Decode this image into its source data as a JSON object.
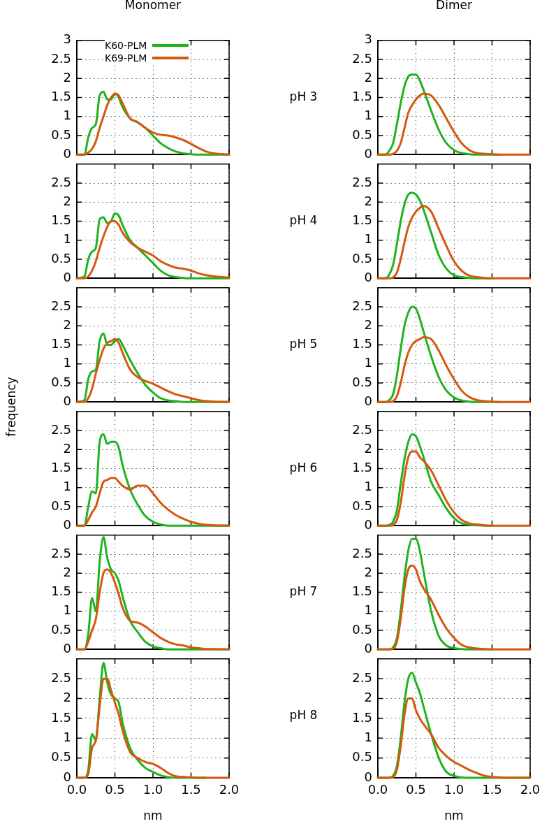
{
  "chart_data": [
    {
      "type": "line",
      "title": "Monomer",
      "annotations": [
        "pH 3"
      ],
      "legend": "top",
      "marker": "none",
      "line_style": "solid",
      "grid": true,
      "tick_labels": "y",
      "x": [
        0,
        0.1,
        0.15,
        0.2,
        0.25,
        0.3,
        0.35,
        0.4,
        0.45,
        0.5,
        0.55,
        0.6,
        0.7,
        0.8,
        0.9,
        1.0,
        1.1,
        1.2,
        1.3,
        1.4,
        1.5,
        1.6,
        1.7,
        1.8,
        2.0
      ],
      "xlim": [
        0,
        2
      ],
      "xticks": [
        {
          "value": 0,
          "label": null
        },
        {
          "value": 0.5,
          "label": null
        },
        {
          "value": 1,
          "label": null
        },
        {
          "value": 1.5,
          "label": null
        },
        {
          "value": 2,
          "label": null
        }
      ],
      "ylim": [
        0,
        3
      ],
      "yticks": [
        0,
        0.5,
        1,
        1.5,
        2,
        2.5,
        3
      ],
      "series": [
        {
          "name": "K60-PLM",
          "color": "#1fb31f",
          "values": [
            0,
            0,
            0.45,
            0.7,
            0.8,
            1.55,
            1.65,
            1.45,
            1.45,
            1.6,
            1.5,
            1.25,
            0.95,
            0.85,
            0.7,
            0.5,
            0.3,
            0.17,
            0.08,
            0.03,
            0.01,
            0,
            0,
            0,
            0
          ]
        },
        {
          "name": "K69-PLM",
          "color": "#d4580f",
          "values": [
            0,
            0,
            0.05,
            0.15,
            0.35,
            0.7,
            1.0,
            1.3,
            1.5,
            1.6,
            1.55,
            1.35,
            0.95,
            0.85,
            0.7,
            0.58,
            0.52,
            0.5,
            0.45,
            0.38,
            0.28,
            0.17,
            0.08,
            0.03,
            0
          ]
        }
      ]
    },
    {
      "type": "line",
      "title": "Dimer",
      "marker": "none",
      "line_style": "solid",
      "grid": true,
      "tick_labels": "y",
      "x": [
        0,
        0.1,
        0.15,
        0.2,
        0.25,
        0.3,
        0.35,
        0.4,
        0.45,
        0.5,
        0.55,
        0.6,
        0.7,
        0.8,
        0.9,
        1.0,
        1.1,
        1.2,
        1.3,
        1.4,
        1.5,
        1.6,
        1.7,
        1.8,
        2.0
      ],
      "xlim": [
        0,
        2
      ],
      "xticks": [
        {
          "value": 0,
          "label": null
        },
        {
          "value": 0.5,
          "label": null
        },
        {
          "value": 1,
          "label": null
        },
        {
          "value": 1.5,
          "label": null
        },
        {
          "value": 2,
          "label": null
        }
      ],
      "ylim": [
        0,
        3
      ],
      "yticks": [
        0,
        0.5,
        1,
        1.5,
        2,
        2.5,
        3
      ],
      "series": [
        {
          "color": "#1fb31f",
          "values": [
            0,
            0,
            0.1,
            0.3,
            0.8,
            1.35,
            1.8,
            2.05,
            2.1,
            2.1,
            1.95,
            1.7,
            1.15,
            0.65,
            0.3,
            0.12,
            0.04,
            0.01,
            0,
            0,
            0,
            0,
            null,
            null,
            null
          ]
        },
        {
          "color": "#d4580f",
          "values": [
            0,
            0,
            0,
            0.02,
            0.1,
            0.3,
            0.7,
            1.1,
            1.3,
            1.45,
            1.55,
            1.6,
            1.55,
            1.3,
            0.95,
            0.6,
            0.3,
            0.12,
            0.04,
            0.02,
            0.01,
            0,
            0,
            0,
            0
          ]
        }
      ]
    },
    {
      "type": "line",
      "annotations": [
        "pH 4"
      ],
      "marker": "none",
      "line_style": "solid",
      "grid": true,
      "tick_labels": "y",
      "x": [
        0,
        0.1,
        0.15,
        0.2,
        0.25,
        0.3,
        0.35,
        0.4,
        0.45,
        0.5,
        0.55,
        0.6,
        0.7,
        0.8,
        0.9,
        1.0,
        1.1,
        1.2,
        1.3,
        1.4,
        1.5,
        1.6,
        1.7,
        1.8,
        2.0
      ],
      "xlim": [
        0,
        2
      ],
      "xticks": [
        {
          "value": 0,
          "label": null
        },
        {
          "value": 0.5,
          "label": null
        },
        {
          "value": 1,
          "label": null
        },
        {
          "value": 1.5,
          "label": null
        },
        {
          "value": 2,
          "label": null
        }
      ],
      "ylim": [
        0,
        3
      ],
      "yticks": [
        0,
        0.5,
        1,
        1.5,
        2,
        2.5
      ],
      "series": [
        {
          "color": "#1fb31f",
          "values": [
            0,
            0.05,
            0.5,
            0.7,
            0.8,
            1.55,
            1.6,
            1.45,
            1.5,
            1.7,
            1.65,
            1.4,
            1.0,
            0.8,
            0.6,
            0.4,
            0.2,
            0.08,
            0.03,
            0.01,
            0,
            0,
            0,
            0,
            0
          ]
        },
        {
          "color": "#d4580f",
          "values": [
            0,
            0,
            0.05,
            0.2,
            0.45,
            0.8,
            1.1,
            1.35,
            1.5,
            1.5,
            1.4,
            1.2,
            0.95,
            0.8,
            0.7,
            0.6,
            0.45,
            0.35,
            0.28,
            0.25,
            0.2,
            0.13,
            0.08,
            0.05,
            0.02
          ]
        }
      ]
    },
    {
      "type": "line",
      "marker": "none",
      "line_style": "solid",
      "grid": true,
      "tick_labels": "y",
      "x": [
        0,
        0.1,
        0.15,
        0.2,
        0.25,
        0.3,
        0.35,
        0.4,
        0.45,
        0.5,
        0.55,
        0.6,
        0.7,
        0.8,
        0.9,
        1.0,
        1.1,
        1.2,
        1.3,
        1.4,
        1.5,
        1.6,
        1.7,
        1.8,
        2.0
      ],
      "xlim": [
        0,
        2
      ],
      "xticks": [
        {
          "value": 0,
          "label": null
        },
        {
          "value": 0.5,
          "label": null
        },
        {
          "value": 1,
          "label": null
        },
        {
          "value": 1.5,
          "label": null
        },
        {
          "value": 2,
          "label": null
        }
      ],
      "ylim": [
        0,
        3
      ],
      "yticks": [
        0,
        0.5,
        1,
        1.5,
        2,
        2.5
      ],
      "series": [
        {
          "color": "#1fb31f",
          "values": [
            0,
            0,
            0.1,
            0.35,
            0.9,
            1.5,
            1.95,
            2.2,
            2.25,
            2.2,
            2.05,
            1.8,
            1.2,
            0.6,
            0.25,
            0.08,
            0.03,
            0.01,
            0,
            0,
            0,
            null,
            null,
            null,
            null
          ]
        },
        {
          "color": "#d4580f",
          "values": [
            0,
            0,
            0,
            0.02,
            0.15,
            0.5,
            0.95,
            1.35,
            1.6,
            1.75,
            1.85,
            1.9,
            1.75,
            1.3,
            0.85,
            0.45,
            0.2,
            0.07,
            0.03,
            0.01,
            0,
            0,
            0,
            0,
            0
          ]
        }
      ]
    },
    {
      "type": "line",
      "annotations": [
        "pH 5"
      ],
      "ylabel": "frequency",
      "marker": "none",
      "line_style": "solid",
      "grid": true,
      "tick_labels": "y",
      "x": [
        0,
        0.1,
        0.15,
        0.2,
        0.25,
        0.3,
        0.35,
        0.4,
        0.45,
        0.5,
        0.55,
        0.6,
        0.7,
        0.8,
        0.9,
        1.0,
        1.1,
        1.2,
        1.3,
        1.4,
        1.5,
        1.6,
        1.7,
        1.8,
        2.0
      ],
      "xlim": [
        0,
        2
      ],
      "xticks": [
        {
          "value": 0,
          "label": null
        },
        {
          "value": 0.5,
          "label": null
        },
        {
          "value": 1,
          "label": null
        },
        {
          "value": 1.5,
          "label": null
        },
        {
          "value": 2,
          "label": null
        }
      ],
      "ylim": [
        0,
        3
      ],
      "yticks": [
        0,
        0.5,
        1,
        1.5,
        2,
        2.5
      ],
      "series": [
        {
          "color": "#1fb31f",
          "values": [
            0,
            0.05,
            0.6,
            0.8,
            0.85,
            1.6,
            1.8,
            1.5,
            1.5,
            1.6,
            1.65,
            1.5,
            1.1,
            0.75,
            0.45,
            0.25,
            0.1,
            0.04,
            0.02,
            0,
            0,
            0,
            0,
            0,
            0
          ]
        },
        {
          "color": "#d4580f",
          "values": [
            0,
            0,
            0.1,
            0.35,
            0.75,
            1.1,
            1.4,
            1.55,
            1.6,
            1.65,
            1.55,
            1.3,
            0.85,
            0.65,
            0.55,
            0.48,
            0.38,
            0.28,
            0.2,
            0.15,
            0.1,
            0.05,
            0.02,
            0.01,
            0
          ]
        }
      ]
    },
    {
      "type": "line",
      "marker": "none",
      "line_style": "solid",
      "grid": true,
      "tick_labels": "y",
      "x": [
        0,
        0.1,
        0.15,
        0.2,
        0.25,
        0.3,
        0.35,
        0.4,
        0.45,
        0.5,
        0.55,
        0.6,
        0.7,
        0.8,
        0.9,
        1.0,
        1.1,
        1.2,
        1.3,
        1.4,
        1.5,
        1.6,
        1.7,
        1.8,
        2.0
      ],
      "xlim": [
        0,
        2
      ],
      "xticks": [
        {
          "value": 0,
          "label": null
        },
        {
          "value": 0.5,
          "label": null
        },
        {
          "value": 1,
          "label": null
        },
        {
          "value": 1.5,
          "label": null
        },
        {
          "value": 2,
          "label": null
        }
      ],
      "ylim": [
        0,
        3
      ],
      "yticks": [
        0,
        0.5,
        1,
        1.5,
        2,
        2.5
      ],
      "series": [
        {
          "color": "#1fb31f",
          "values": [
            0,
            0,
            0.05,
            0.2,
            0.7,
            1.4,
            2.0,
            2.35,
            2.5,
            2.45,
            2.2,
            1.85,
            1.2,
            0.65,
            0.3,
            0.12,
            0.04,
            0.01,
            0,
            0,
            0,
            0,
            null,
            null,
            null
          ]
        },
        {
          "color": "#d4580f",
          "values": [
            0,
            0,
            0,
            0.02,
            0.15,
            0.5,
            0.95,
            1.3,
            1.5,
            1.6,
            1.65,
            1.7,
            1.65,
            1.35,
            0.95,
            0.6,
            0.3,
            0.13,
            0.05,
            0.02,
            0.01,
            0,
            0,
            0,
            0
          ]
        }
      ]
    },
    {
      "type": "line",
      "annotations": [
        "pH 6"
      ],
      "marker": "none",
      "line_style": "solid",
      "grid": true,
      "tick_labels": "y",
      "x": [
        0,
        0.1,
        0.15,
        0.2,
        0.25,
        0.3,
        0.35,
        0.4,
        0.45,
        0.5,
        0.55,
        0.6,
        0.7,
        0.8,
        0.9,
        1.0,
        1.1,
        1.2,
        1.3,
        1.4,
        1.5,
        1.6,
        1.7,
        1.8,
        2.0
      ],
      "xlim": [
        0,
        2
      ],
      "xticks": [
        {
          "value": 0,
          "label": null
        },
        {
          "value": 0.5,
          "label": null
        },
        {
          "value": 1,
          "label": null
        },
        {
          "value": 1.5,
          "label": null
        },
        {
          "value": 2,
          "label": null
        }
      ],
      "ylim": [
        0,
        3
      ],
      "yticks": [
        0,
        0.5,
        1,
        1.5,
        2,
        2.5
      ],
      "series": [
        {
          "color": "#1fb31f",
          "values": [
            0,
            0,
            0.5,
            0.9,
            0.85,
            2.2,
            2.4,
            2.15,
            2.2,
            2.2,
            2.05,
            1.6,
            0.95,
            0.55,
            0.25,
            0.1,
            0.03,
            0,
            0,
            0,
            0,
            0,
            0,
            0,
            0
          ]
        },
        {
          "color": "#d4580f",
          "values": [
            0,
            0,
            0.15,
            0.35,
            0.5,
            0.85,
            1.15,
            1.2,
            1.25,
            1.25,
            1.15,
            1.05,
            0.95,
            1.05,
            1.05,
            0.85,
            0.6,
            0.42,
            0.28,
            0.18,
            0.1,
            0.05,
            0.02,
            0.01,
            0
          ]
        }
      ]
    },
    {
      "type": "line",
      "marker": "none",
      "line_style": "solid",
      "grid": true,
      "tick_labels": "y",
      "x": [
        0,
        0.1,
        0.15,
        0.2,
        0.25,
        0.3,
        0.35,
        0.4,
        0.45,
        0.5,
        0.55,
        0.6,
        0.7,
        0.8,
        0.9,
        1.0,
        1.1,
        1.2,
        1.3,
        1.4,
        1.5,
        1.6,
        1.7,
        1.8,
        2.0
      ],
      "xlim": [
        0,
        2
      ],
      "xticks": [
        {
          "value": 0,
          "label": null
        },
        {
          "value": 0.5,
          "label": null
        },
        {
          "value": 1,
          "label": null
        },
        {
          "value": 1.5,
          "label": null
        },
        {
          "value": 2,
          "label": null
        }
      ],
      "ylim": [
        0,
        3
      ],
      "yticks": [
        0,
        0.5,
        1,
        1.5,
        2,
        2.5
      ],
      "series": [
        {
          "color": "#1fb31f",
          "values": [
            0,
            0,
            0.02,
            0.1,
            0.4,
            1.1,
            1.75,
            2.2,
            2.4,
            2.35,
            2.1,
            1.8,
            1.15,
            0.8,
            0.45,
            0.2,
            0.06,
            0.02,
            0.01,
            0,
            0,
            null,
            null,
            null,
            null
          ]
        },
        {
          "color": "#d4580f",
          "values": [
            0,
            0,
            0,
            0.02,
            0.15,
            0.6,
            1.3,
            1.8,
            1.95,
            1.95,
            1.8,
            1.7,
            1.45,
            1.05,
            0.65,
            0.35,
            0.15,
            0.06,
            0.03,
            0.01,
            0,
            0,
            0,
            0,
            0
          ]
        }
      ]
    },
    {
      "type": "line",
      "annotations": [
        "pH 7"
      ],
      "marker": "none",
      "line_style": "solid",
      "grid": true,
      "tick_labels": "y",
      "x": [
        0,
        0.1,
        0.15,
        0.2,
        0.25,
        0.3,
        0.35,
        0.4,
        0.45,
        0.5,
        0.55,
        0.6,
        0.7,
        0.8,
        0.9,
        1.0,
        1.1,
        1.2,
        1.3,
        1.4,
        1.5,
        1.6,
        1.7,
        1.8,
        2.0
      ],
      "xlim": [
        0,
        2
      ],
      "xticks": [
        {
          "value": 0,
          "label": null
        },
        {
          "value": 0.5,
          "label": null
        },
        {
          "value": 1,
          "label": null
        },
        {
          "value": 1.5,
          "label": null
        },
        {
          "value": 2,
          "label": null
        }
      ],
      "ylim": [
        0,
        3
      ],
      "yticks": [
        0,
        0.5,
        1,
        1.5,
        2,
        2.5
      ],
      "series": [
        {
          "color": "#1fb31f",
          "values": [
            0,
            0,
            0.4,
            1.35,
            1.0,
            2.3,
            2.95,
            2.4,
            2.1,
            2.0,
            1.8,
            1.4,
            0.75,
            0.45,
            0.2,
            0.08,
            0.03,
            0,
            0,
            0,
            0,
            0,
            0,
            0,
            0
          ]
        },
        {
          "color": "#d4580f",
          "values": [
            0,
            0,
            0.2,
            0.5,
            0.8,
            1.5,
            2.0,
            2.1,
            2.0,
            1.75,
            1.45,
            1.1,
            0.75,
            0.7,
            0.6,
            0.45,
            0.3,
            0.2,
            0.13,
            0.1,
            0.05,
            0.03,
            0.01,
            0.01,
            0
          ]
        }
      ]
    },
    {
      "type": "line",
      "marker": "none",
      "line_style": "solid",
      "grid": true,
      "tick_labels": "y",
      "x": [
        0,
        0.1,
        0.15,
        0.2,
        0.25,
        0.3,
        0.35,
        0.4,
        0.45,
        0.5,
        0.55,
        0.6,
        0.7,
        0.8,
        0.9,
        1.0,
        1.1,
        1.2,
        1.3,
        1.4,
        1.5,
        1.6,
        1.7,
        1.8,
        2.0
      ],
      "xlim": [
        0,
        2
      ],
      "xticks": [
        {
          "value": 0,
          "label": null
        },
        {
          "value": 0.5,
          "label": null
        },
        {
          "value": 1,
          "label": null
        },
        {
          "value": 1.5,
          "label": null
        },
        {
          "value": 2,
          "label": null
        }
      ],
      "ylim": [
        0,
        3
      ],
      "yticks": [
        0,
        0.5,
        1,
        1.5,
        2,
        2.5
      ],
      "series": [
        {
          "color": "#1fb31f",
          "values": [
            0,
            0,
            0,
            0.05,
            0.3,
            1.0,
            1.9,
            2.6,
            2.9,
            2.9,
            2.6,
            2.05,
            1.0,
            0.35,
            0.1,
            0.03,
            0.01,
            0,
            0,
            0,
            0,
            null,
            null,
            null,
            null
          ]
        },
        {
          "color": "#d4580f",
          "values": [
            0,
            0,
            0,
            0.02,
            0.2,
            0.8,
            1.6,
            2.1,
            2.2,
            2.1,
            1.8,
            1.6,
            1.3,
            0.9,
            0.55,
            0.3,
            0.12,
            0.05,
            0.02,
            0.01,
            0,
            0,
            0,
            0,
            0
          ]
        }
      ]
    },
    {
      "type": "line",
      "annotations": [
        "pH 8"
      ],
      "xlabel": "nm",
      "marker": "none",
      "line_style": "solid",
      "grid": true,
      "x": [
        0,
        0.1,
        0.15,
        0.2,
        0.25,
        0.3,
        0.35,
        0.4,
        0.45,
        0.5,
        0.55,
        0.6,
        0.7,
        0.8,
        0.9,
        1.0,
        1.1,
        1.2,
        1.3,
        1.4,
        1.5,
        1.6,
        1.7,
        1.8,
        2.0
      ],
      "xlim": [
        0,
        2
      ],
      "xticks": [
        {
          "value": 0,
          "label": "0.0"
        },
        {
          "value": 0.5,
          "label": "0.5"
        },
        {
          "value": 1,
          "label": "1.0"
        },
        {
          "value": 1.5,
          "label": "1.5"
        },
        {
          "value": 2,
          "label": "2.0"
        }
      ],
      "ylim": [
        0,
        3
      ],
      "yticks": [
        0,
        0.5,
        1,
        1.5,
        2,
        2.5
      ],
      "series": [
        {
          "color": "#1fb31f",
          "values": [
            0,
            0,
            0.2,
            1.1,
            0.95,
            2.0,
            2.9,
            2.4,
            2.1,
            2.0,
            1.9,
            1.4,
            0.75,
            0.45,
            0.25,
            0.15,
            0.06,
            0.02,
            0,
            0,
            0,
            0,
            0,
            null,
            null
          ]
        },
        {
          "color": "#d4580f",
          "values": [
            0,
            0,
            0.1,
            0.75,
            0.95,
            1.8,
            2.5,
            2.5,
            2.2,
            1.9,
            1.6,
            1.2,
            0.65,
            0.5,
            0.4,
            0.35,
            0.25,
            0.12,
            0.04,
            0.02,
            0.01,
            0,
            0,
            0,
            0
          ]
        }
      ]
    },
    {
      "type": "line",
      "xlabel": "nm",
      "marker": "none",
      "line_style": "solid",
      "grid": true,
      "x": [
        0,
        0.1,
        0.15,
        0.2,
        0.25,
        0.3,
        0.35,
        0.4,
        0.45,
        0.5,
        0.55,
        0.6,
        0.7,
        0.8,
        0.9,
        1.0,
        1.1,
        1.2,
        1.3,
        1.4,
        1.5,
        1.6,
        1.7,
        1.8,
        2.0
      ],
      "xlim": [
        0,
        2
      ],
      "xticks": [
        {
          "value": 0,
          "label": "0.0"
        },
        {
          "value": 0.5,
          "label": "0.5"
        },
        {
          "value": 1,
          "label": "1.0"
        },
        {
          "value": 1.5,
          "label": "1.5"
        },
        {
          "value": 2,
          "label": "2.0"
        }
      ],
      "ylim": [
        0,
        3
      ],
      "yticks": [
        0,
        0.5,
        1,
        1.5,
        2,
        2.5
      ],
      "series": [
        {
          "color": "#1fb31f",
          "values": [
            0,
            0,
            0,
            0.05,
            0.3,
            1.0,
            1.9,
            2.5,
            2.65,
            2.4,
            2.15,
            1.8,
            1.1,
            0.5,
            0.15,
            0.05,
            0.01,
            0,
            0,
            0,
            0,
            0,
            0,
            0,
            0
          ]
        },
        {
          "color": "#d4580f",
          "values": [
            0,
            0,
            0,
            0.02,
            0.2,
            0.8,
            1.6,
            2.0,
            2.0,
            1.7,
            1.5,
            1.35,
            1.1,
            0.75,
            0.55,
            0.4,
            0.3,
            0.2,
            0.12,
            0.05,
            0.02,
            0.01,
            0,
            0,
            0
          ]
        }
      ]
    }
  ]
}
